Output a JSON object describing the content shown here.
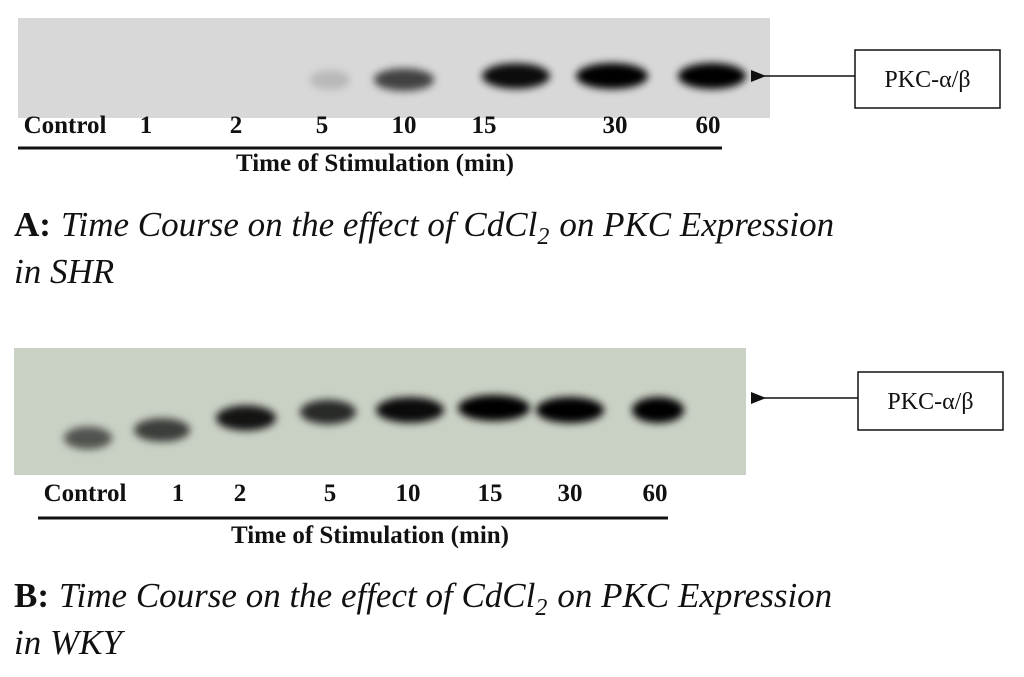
{
  "panels": [
    {
      "lanes": [
        "Control",
        "1",
        "2",
        "5",
        "10",
        "15",
        "30",
        "60"
      ],
      "axis_label": "Time of Stimulation (min)",
      "band_label": "PKC-α/β",
      "caption": {
        "label": "A:",
        "text_before": "Time Course on the effect of CdCl",
        "subscript": "2",
        "text_after": "on PKC Expression",
        "text_line2": "in SHR"
      }
    },
    {
      "lanes": [
        "Control",
        "1",
        "2",
        "5",
        "10",
        "15",
        "30",
        "60"
      ],
      "axis_label": "Time of Stimulation (min)",
      "band_label": "PKC-α/β",
      "caption": {
        "label": "B:",
        "text_before": "Time Course on the effect of CdCl",
        "subscript": "2",
        "text_after": "on PKC Expression",
        "text_line2": "in WKY"
      }
    }
  ]
}
